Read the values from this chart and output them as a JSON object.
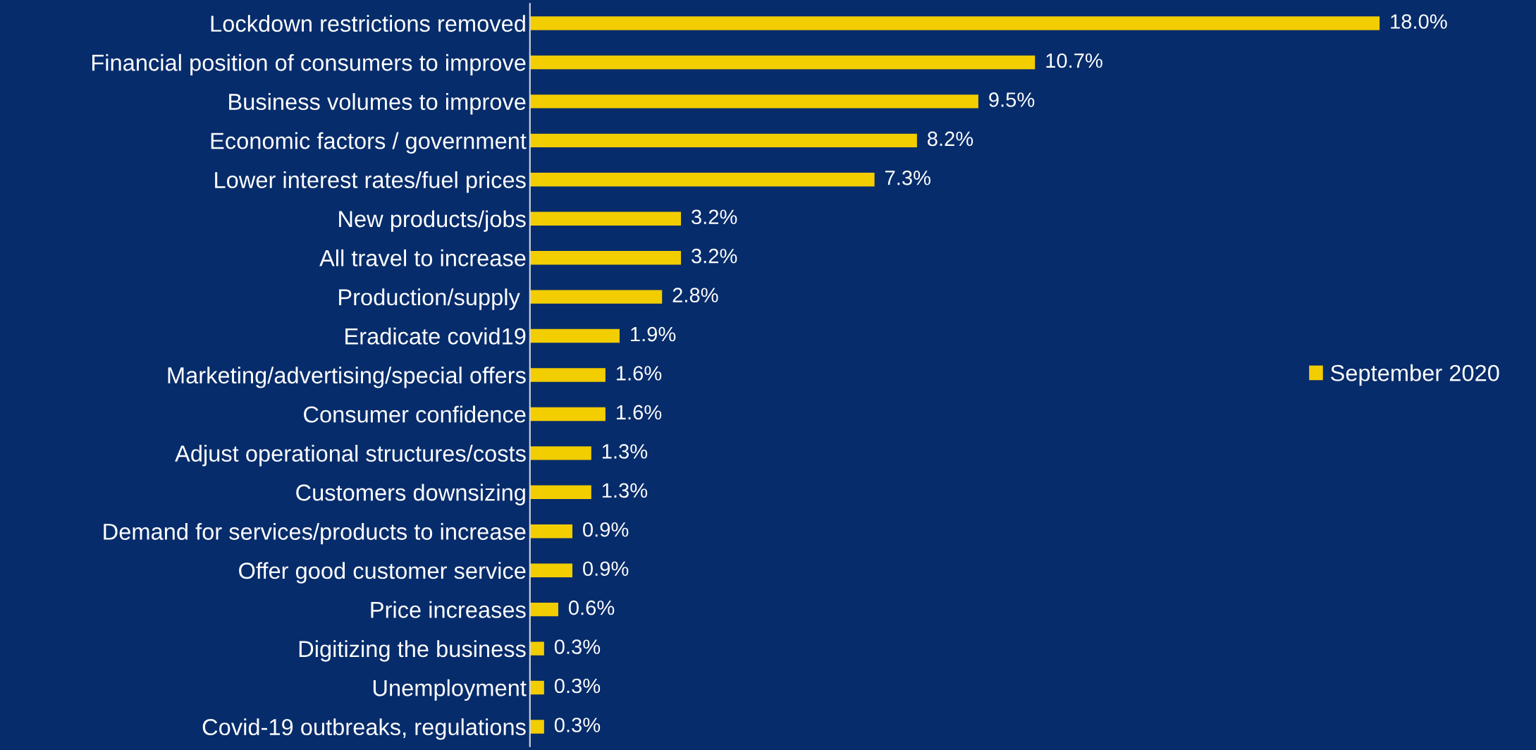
{
  "chart_data": {
    "type": "bar",
    "orientation": "horizontal",
    "categories": [
      "Lockdown restrictions removed",
      "Financial position of consumers to improve",
      "Business volumes to improve",
      "Economic factors / government",
      "Lower interest rates/fuel prices",
      "New products/jobs",
      "All travel to increase",
      "Production/supply ",
      "Eradicate covid19",
      "Marketing/advertising/special offers",
      "Consumer confidence",
      "Adjust operational structures/costs",
      "Customers downsizing",
      "Demand for services/products to increase",
      "Offer good customer service",
      "Price increases",
      "Digitizing the business",
      "Unemployment",
      "Covid-19 outbreaks, regulations"
    ],
    "series": [
      {
        "name": "September 2020",
        "color": "#f2cd00",
        "values": [
          18.0,
          10.7,
          9.5,
          8.2,
          7.3,
          3.2,
          3.2,
          2.8,
          1.9,
          1.6,
          1.6,
          1.3,
          1.3,
          0.9,
          0.9,
          0.6,
          0.3,
          0.3,
          0.3
        ],
        "value_labels": [
          "18.0%",
          "10.7%",
          "9.5%",
          "8.2%",
          "7.3%",
          "3.2%",
          "3.2%",
          "2.8%",
          "1.9%",
          "1.6%",
          "1.6%",
          "1.3%",
          "1.3%",
          "0.9%",
          "0.9%",
          "0.6%",
          "0.3%",
          "0.3%",
          "0.3%"
        ]
      }
    ],
    "legend": "right",
    "grid": false,
    "tick_labels": "y"
  }
}
